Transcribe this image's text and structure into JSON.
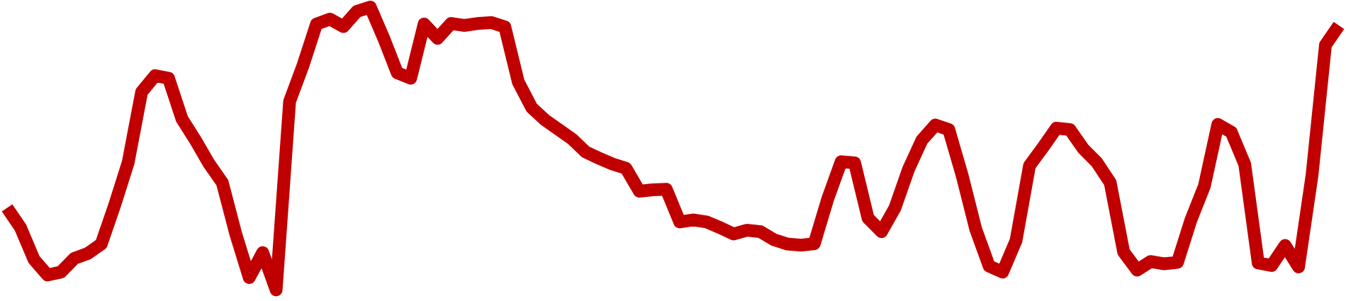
{
  "chart_data": {
    "type": "line",
    "title": "",
    "xlabel": "",
    "ylabel": "",
    "grid": false,
    "legend": "none",
    "ylim": [
      0,
      100
    ],
    "x": [
      0,
      1,
      2,
      3,
      4,
      5,
      6,
      7,
      8,
      9,
      10,
      11,
      12,
      13,
      14,
      15,
      16,
      17,
      18,
      19,
      20,
      21,
      22,
      23,
      24,
      25,
      26,
      27,
      28,
      29,
      30,
      31,
      32,
      33,
      34,
      35,
      36,
      37,
      38,
      39,
      40,
      41,
      42,
      43,
      44,
      45,
      46,
      47,
      48,
      49,
      50,
      51,
      52,
      53,
      54,
      55,
      56,
      57,
      58,
      59,
      60,
      61,
      62,
      63,
      64,
      65,
      66,
      67,
      68,
      69,
      70,
      71,
      72,
      73,
      74,
      75,
      76,
      77,
      78,
      79,
      80,
      81,
      82,
      83,
      84,
      85,
      86,
      87,
      88,
      89,
      90,
      91,
      92,
      93,
      94,
      95,
      96,
      97,
      98,
      99
    ],
    "series": [
      {
        "color": "#c00000",
        "values": [
          30.0,
          23.1,
          12.0,
          6.6,
          7.6,
          12.4,
          14.1,
          17.4,
          31.0,
          45.8,
          70.4,
          76.1,
          75.2,
          61.0,
          53.6,
          45.5,
          38.8,
          20.9,
          5.7,
          14.4,
          1.4,
          67.1,
          79.7,
          94.1,
          95.8,
          93.2,
          98.5,
          100.0,
          89.1,
          77.1,
          75.2,
          94.1,
          89.1,
          94.3,
          93.6,
          94.3,
          94.6,
          93.1,
          73.9,
          64.9,
          60.6,
          57.3,
          54.0,
          49.5,
          47.3,
          45.3,
          43.8,
          35.8,
          36.3,
          36.5,
          25.1,
          25.8,
          25.1,
          23.1,
          20.9,
          22.2,
          21.7,
          18.9,
          17.4,
          17.0,
          17.5,
          33.1,
          46.1,
          45.7,
          26.4,
          21.7,
          30.0,
          43.4,
          53.6,
          58.9,
          57.3,
          41.2,
          22.6,
          9.7,
          7.6,
          18.6,
          44.7,
          51.1,
          57.8,
          57.3,
          50.6,
          45.9,
          38.8,
          14.6,
          8.3,
          11.3,
          10.5,
          11.0,
          25.8,
          37.6,
          59.1,
          56.4,
          45.2,
          10.8,
          9.9,
          16.9,
          9.4,
          41.3,
          86.8,
          93.6
        ]
      }
    ]
  }
}
